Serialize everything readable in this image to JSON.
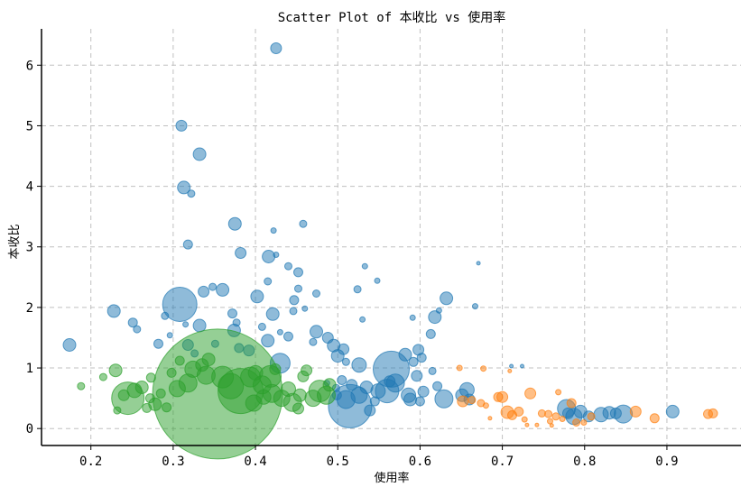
{
  "chart_data": {
    "type": "scatter",
    "title": "Scatter Plot of 本收比 vs 使用率",
    "xlabel": "使用率",
    "ylabel": "本收比",
    "xlim": [
      0.14,
      0.99
    ],
    "ylim": [
      -0.28,
      6.6
    ],
    "xticks": [
      "0.2",
      "0.3",
      "0.4",
      "0.5",
      "0.6",
      "0.7",
      "0.8",
      "0.9"
    ],
    "yticks": [
      "0",
      "1",
      "2",
      "3",
      "4",
      "5",
      "6"
    ],
    "grid": true,
    "legend": "none",
    "series": [
      {
        "color": "#1f77b4",
        "points": [
          [
            0.425,
            6.28,
            6
          ],
          [
            0.31,
            5.0,
            6
          ],
          [
            0.332,
            4.53,
            7
          ],
          [
            0.313,
            3.98,
            7
          ],
          [
            0.322,
            3.88,
            4
          ],
          [
            0.375,
            3.38,
            7
          ],
          [
            0.318,
            3.04,
            5
          ],
          [
            0.458,
            3.38,
            4
          ],
          [
            0.422,
            3.27,
            3
          ],
          [
            0.382,
            2.9,
            6
          ],
          [
            0.416,
            2.84,
            7
          ],
          [
            0.425,
            2.87,
            3
          ],
          [
            0.452,
            2.58,
            5
          ],
          [
            0.44,
            2.68,
            4
          ],
          [
            0.533,
            2.68,
            3
          ],
          [
            0.671,
            2.73,
            2
          ],
          [
            0.228,
            1.94,
            7
          ],
          [
            0.308,
            2.05,
            19
          ],
          [
            0.36,
            2.29,
            7
          ],
          [
            0.348,
            2.34,
            4
          ],
          [
            0.337,
            2.26,
            6
          ],
          [
            0.452,
            2.31,
            4
          ],
          [
            0.474,
            2.23,
            4
          ],
          [
            0.524,
            2.3,
            4
          ],
          [
            0.548,
            2.44,
            3
          ],
          [
            0.632,
            2.15,
            7
          ],
          [
            0.402,
            2.18,
            7
          ],
          [
            0.415,
            2.43,
            4
          ],
          [
            0.447,
            2.12,
            5
          ],
          [
            0.667,
            2.02,
            3
          ],
          [
            0.421,
            1.89,
            7
          ],
          [
            0.446,
            1.94,
            4
          ],
          [
            0.46,
            1.98,
            3
          ],
          [
            0.29,
            1.86,
            4
          ],
          [
            0.251,
            1.75,
            5
          ],
          [
            0.256,
            1.64,
            4
          ],
          [
            0.372,
            1.9,
            5
          ],
          [
            0.377,
            1.75,
            4
          ],
          [
            0.315,
            1.72,
            3
          ],
          [
            0.332,
            1.7,
            7
          ],
          [
            0.374,
            1.62,
            7
          ],
          [
            0.415,
            1.45,
            7
          ],
          [
            0.408,
            1.68,
            4
          ],
          [
            0.43,
            1.59,
            3
          ],
          [
            0.44,
            1.52,
            5
          ],
          [
            0.474,
            1.6,
            7
          ],
          [
            0.488,
            1.5,
            6
          ],
          [
            0.53,
            1.8,
            3
          ],
          [
            0.591,
            1.83,
            3
          ],
          [
            0.618,
            1.84,
            7
          ],
          [
            0.623,
            1.95,
            3
          ],
          [
            0.174,
            1.38,
            7
          ],
          [
            0.282,
            1.4,
            5
          ],
          [
            0.296,
            1.54,
            3
          ],
          [
            0.318,
            1.38,
            6
          ],
          [
            0.326,
            1.24,
            4
          ],
          [
            0.351,
            1.4,
            4
          ],
          [
            0.38,
            1.33,
            5
          ],
          [
            0.392,
            1.29,
            6
          ],
          [
            0.43,
            1.08,
            11
          ],
          [
            0.47,
            1.43,
            4
          ],
          [
            0.495,
            1.37,
            7
          ],
          [
            0.507,
            1.31,
            6
          ],
          [
            0.5,
            1.2,
            7
          ],
          [
            0.51,
            1.1,
            4
          ],
          [
            0.526,
            1.05,
            8
          ],
          [
            0.565,
            0.98,
            20
          ],
          [
            0.582,
            1.22,
            7
          ],
          [
            0.592,
            1.1,
            5
          ],
          [
            0.598,
            1.3,
            6
          ],
          [
            0.602,
            1.17,
            5
          ],
          [
            0.613,
            1.56,
            5
          ],
          [
            0.615,
            0.95,
            4
          ],
          [
            0.596,
            0.87,
            6
          ],
          [
            0.57,
            0.75,
            10
          ],
          [
            0.56,
            0.62,
            13
          ],
          [
            0.586,
            0.55,
            8
          ],
          [
            0.604,
            0.61,
            6
          ],
          [
            0.621,
            0.7,
            5
          ],
          [
            0.629,
            0.49,
            10
          ],
          [
            0.651,
            0.55,
            7
          ],
          [
            0.657,
            0.64,
            8
          ],
          [
            0.66,
            0.48,
            6
          ],
          [
            0.515,
            0.37,
            24
          ],
          [
            0.526,
            0.55,
            9
          ],
          [
            0.535,
            0.68,
            7
          ],
          [
            0.549,
            0.62,
            8
          ],
          [
            0.517,
            0.72,
            6
          ],
          [
            0.545,
            0.45,
            5
          ],
          [
            0.51,
            0.48,
            10
          ],
          [
            0.498,
            0.67,
            4
          ],
          [
            0.505,
            0.8,
            5
          ],
          [
            0.487,
            0.75,
            3
          ],
          [
            0.539,
            0.3,
            6
          ],
          [
            0.499,
            0.55,
            5
          ],
          [
            0.588,
            0.48,
            7
          ],
          [
            0.6,
            0.45,
            5
          ],
          [
            0.563,
            0.78,
            6
          ],
          [
            0.711,
            1.03,
            2
          ],
          [
            0.724,
            1.03,
            2
          ],
          [
            0.778,
            0.33,
            10
          ],
          [
            0.787,
            0.2,
            9
          ],
          [
            0.795,
            0.28,
            7
          ],
          [
            0.805,
            0.2,
            6
          ],
          [
            0.82,
            0.23,
            8
          ],
          [
            0.83,
            0.26,
            7
          ],
          [
            0.838,
            0.25,
            6
          ],
          [
            0.847,
            0.24,
            10
          ],
          [
            0.907,
            0.28,
            7
          ],
          [
            0.78,
            0.25,
            6
          ]
        ]
      },
      {
        "color": "#ff7f0e",
        "points": [
          [
            0.648,
            1.0,
            3
          ],
          [
            0.677,
            0.99,
            3
          ],
          [
            0.652,
            0.45,
            6
          ],
          [
            0.663,
            0.47,
            4
          ],
          [
            0.674,
            0.42,
            4
          ],
          [
            0.68,
            0.38,
            3
          ],
          [
            0.685,
            0.17,
            2
          ],
          [
            0.695,
            0.52,
            5
          ],
          [
            0.7,
            0.52,
            6
          ],
          [
            0.706,
            0.27,
            7
          ],
          [
            0.712,
            0.22,
            5
          ],
          [
            0.72,
            0.28,
            5
          ],
          [
            0.727,
            0.15,
            3
          ],
          [
            0.73,
            0.06,
            2
          ],
          [
            0.734,
            0.58,
            6
          ],
          [
            0.742,
            0.06,
            2
          ],
          [
            0.748,
            0.25,
            4
          ],
          [
            0.756,
            0.24,
            4
          ],
          [
            0.758,
            0.12,
            3
          ],
          [
            0.76,
            0.05,
            2
          ],
          [
            0.765,
            0.2,
            4
          ],
          [
            0.768,
            0.6,
            3
          ],
          [
            0.773,
            0.16,
            3
          ],
          [
            0.784,
            0.42,
            5
          ],
          [
            0.79,
            0.1,
            4
          ],
          [
            0.799,
            0.1,
            3
          ],
          [
            0.808,
            0.2,
            4
          ],
          [
            0.862,
            0.28,
            6
          ],
          [
            0.885,
            0.17,
            5
          ],
          [
            0.95,
            0.24,
            5
          ],
          [
            0.956,
            0.25,
            5
          ],
          [
            0.709,
            0.95,
            2
          ]
        ]
      },
      {
        "color": "#2ca02c",
        "points": [
          [
            0.354,
            0.57,
            72
          ],
          [
            0.382,
            0.62,
            25
          ],
          [
            0.245,
            0.5,
            18
          ],
          [
            0.23,
            0.96,
            7
          ],
          [
            0.188,
            0.7,
            4
          ],
          [
            0.24,
            0.55,
            6
          ],
          [
            0.253,
            0.63,
            8
          ],
          [
            0.262,
            0.68,
            7
          ],
          [
            0.273,
            0.84,
            5
          ],
          [
            0.278,
            0.4,
            7
          ],
          [
            0.292,
            0.35,
            5
          ],
          [
            0.305,
            0.66,
            9
          ],
          [
            0.318,
            0.75,
            10
          ],
          [
            0.324,
            0.98,
            9
          ],
          [
            0.335,
            1.05,
            7
          ],
          [
            0.343,
            1.14,
            7
          ],
          [
            0.34,
            0.88,
            10
          ],
          [
            0.36,
            0.85,
            12
          ],
          [
            0.37,
            0.7,
            14
          ],
          [
            0.394,
            0.85,
            11
          ],
          [
            0.408,
            0.72,
            10
          ],
          [
            0.418,
            0.86,
            12
          ],
          [
            0.42,
            0.58,
            10
          ],
          [
            0.432,
            0.5,
            9
          ],
          [
            0.44,
            0.65,
            8
          ],
          [
            0.445,
            0.43,
            10
          ],
          [
            0.454,
            0.55,
            7
          ],
          [
            0.458,
            0.86,
            6
          ],
          [
            0.47,
            0.5,
            9
          ],
          [
            0.478,
            0.62,
            12
          ],
          [
            0.486,
            0.55,
            10
          ],
          [
            0.49,
            0.72,
            7
          ],
          [
            0.462,
            0.96,
            6
          ],
          [
            0.452,
            0.33,
            6
          ],
          [
            0.424,
            0.98,
            6
          ],
          [
            0.41,
            0.52,
            8
          ],
          [
            0.298,
            0.92,
            5
          ],
          [
            0.308,
            1.12,
            5
          ],
          [
            0.285,
            0.58,
            5
          ],
          [
            0.272,
            0.5,
            5
          ],
          [
            0.268,
            0.34,
            5
          ],
          [
            0.232,
            0.3,
            4
          ],
          [
            0.215,
            0.85,
            4
          ],
          [
            0.4,
            0.92,
            8
          ],
          [
            0.398,
            0.42,
            9
          ]
        ]
      }
    ]
  }
}
